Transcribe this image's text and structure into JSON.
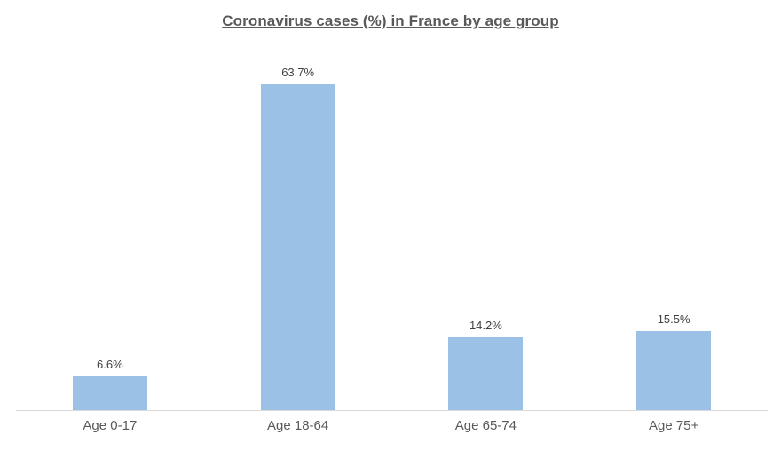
{
  "chart": {
    "colors": {
      "bar_fill": "#9BC2E6",
      "axis_line": "#D9D9D9",
      "title_text": "#595959",
      "data_label_text": "#404040",
      "category_label_text": "#595959",
      "background": "#FFFFFF"
    }
  },
  "chart_data": {
    "type": "bar",
    "title": "Coronavirus cases (%) in France by age group",
    "categories": [
      "Age 0-17",
      "Age 18-64",
      "Age 65-74",
      "Age 75+"
    ],
    "values": [
      6.6,
      63.7,
      14.2,
      15.5
    ],
    "data_labels": [
      "6.6%",
      "63.7%",
      "14.2%",
      "15.5%"
    ],
    "xlabel": "",
    "ylabel": "",
    "ylim": [
      0,
      70
    ],
    "grid": false,
    "legend": false,
    "data_labels_position": "above-bar",
    "title_style": "bold-underline"
  }
}
